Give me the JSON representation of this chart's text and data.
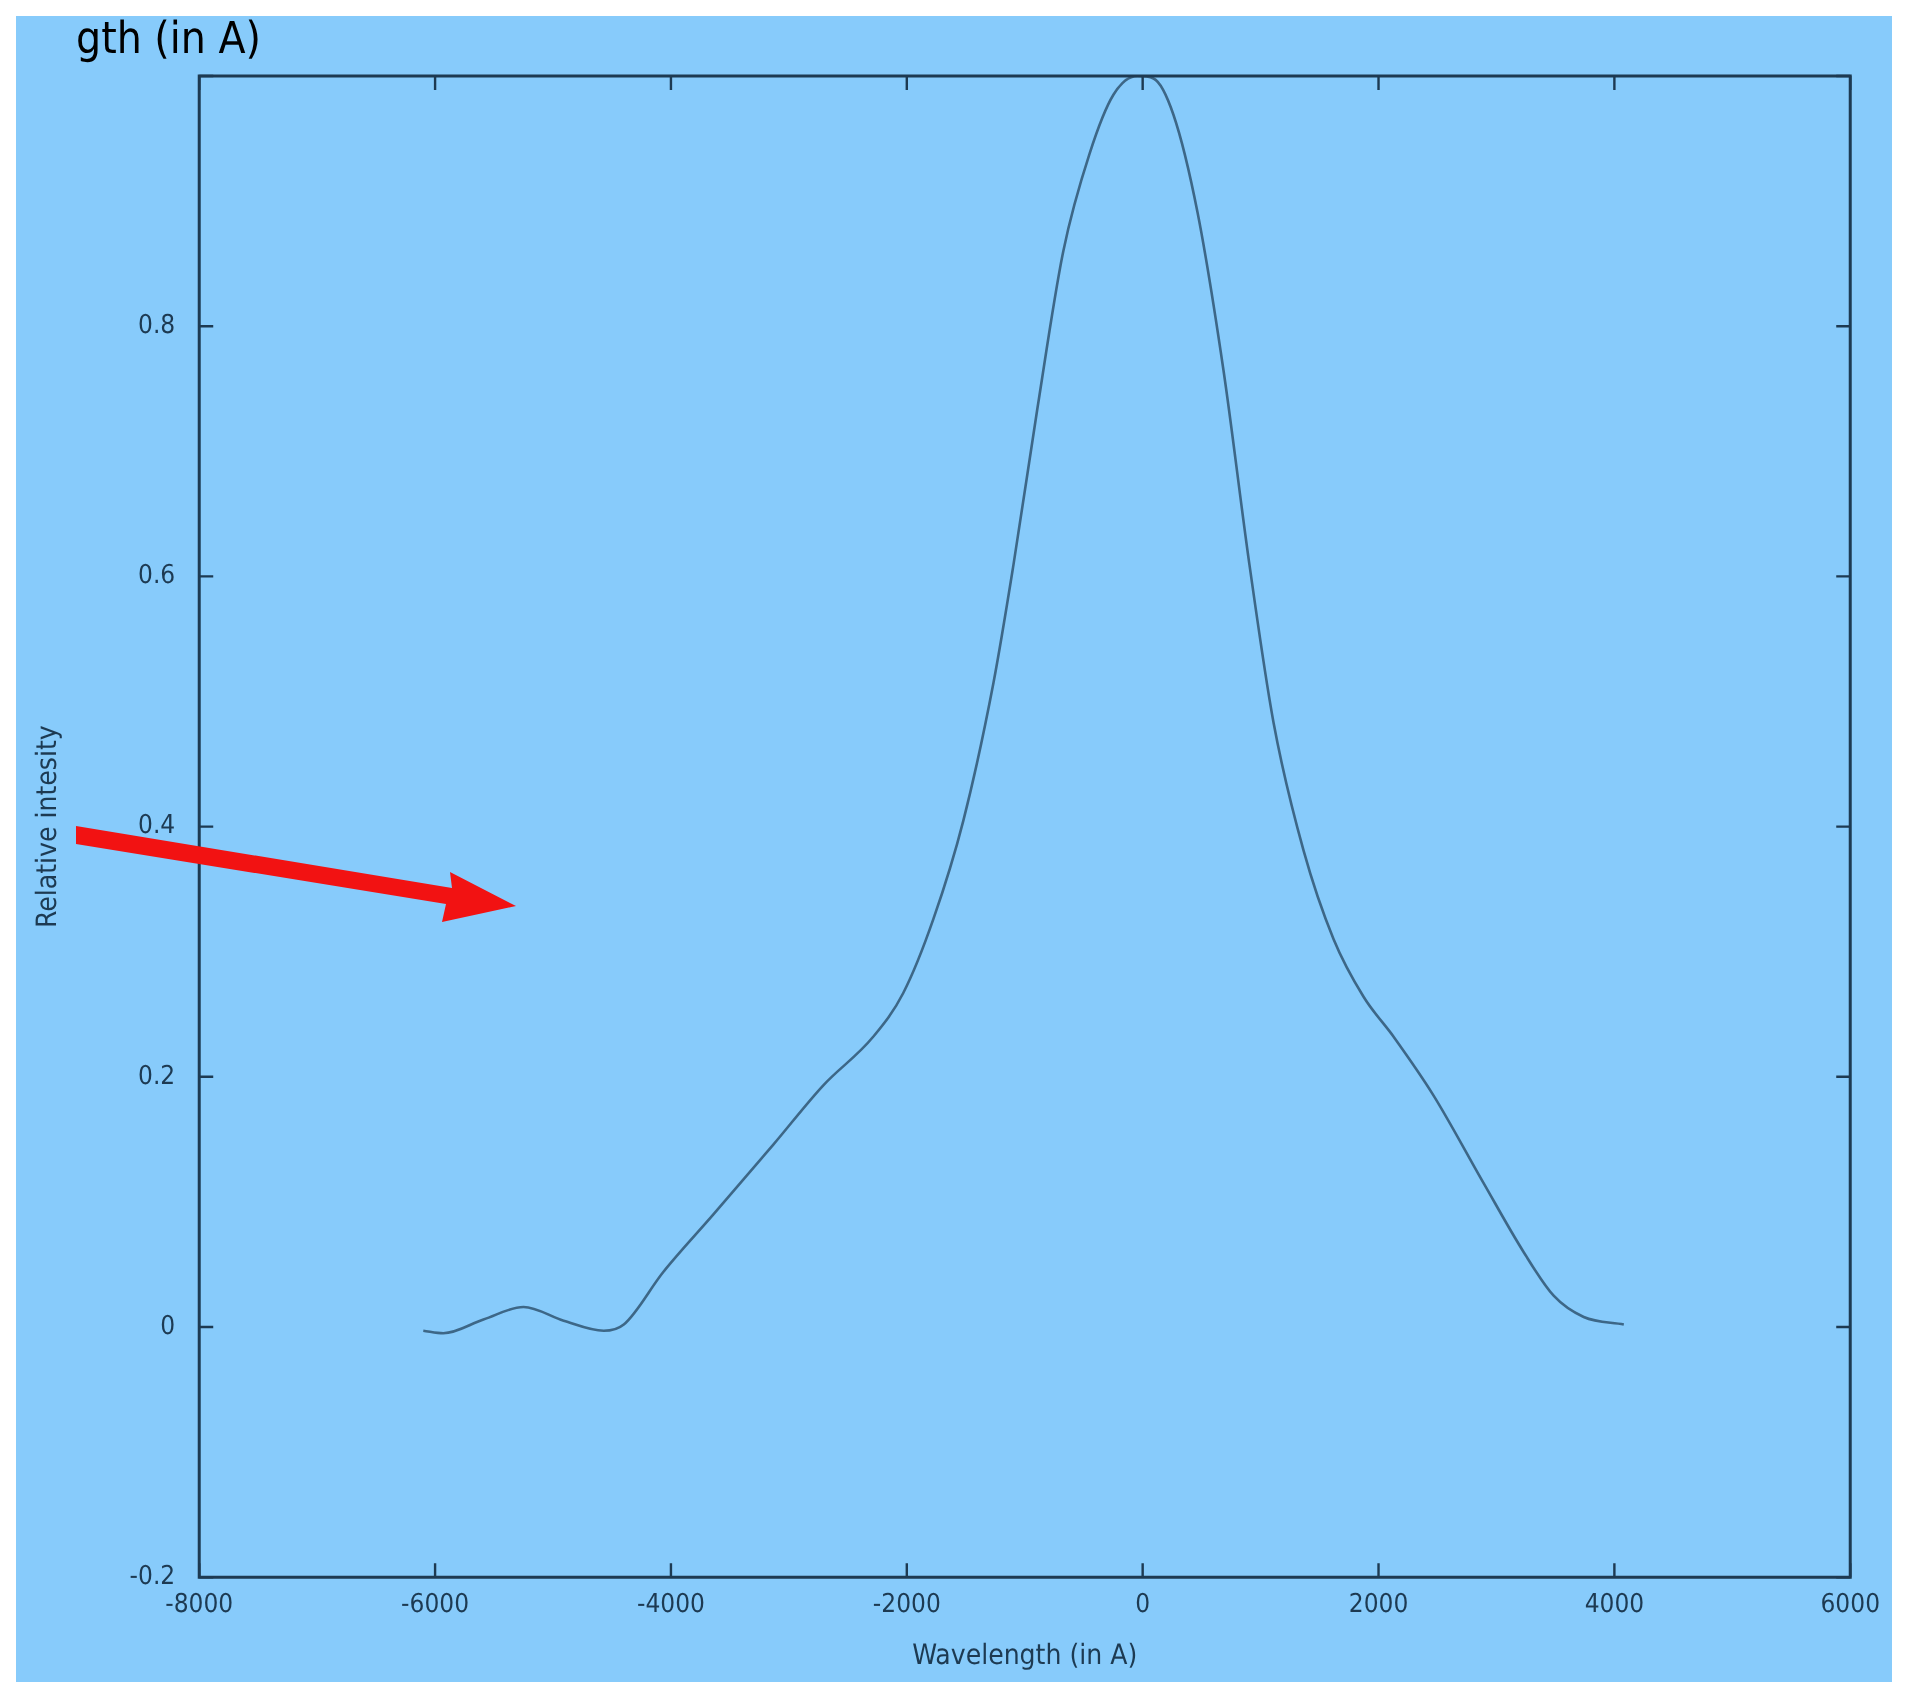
{
  "chart_data": {
    "type": "line",
    "xlabel": "Wavelength (in A)",
    "ylabel": "Relative intesity",
    "annotations": [
      "gth (in A)"
    ],
    "series": [
      {
        "color": "#3d6787",
        "x": [
          -6100,
          -5930,
          -5590,
          -5250,
          -4910,
          -4570,
          -4400,
          -4065,
          -3640,
          -3130,
          -2710,
          -2285,
          -2030,
          -1775,
          -1520,
          -1265,
          -1096,
          -893,
          -673,
          -450,
          -248,
          -44,
          92,
          261,
          465,
          685,
          906,
          1110,
          1364,
          1619,
          1873,
          2128,
          2467,
          2891,
          3230,
          3485,
          3740,
          4080
        ],
        "values": [
          -0.003,
          -0.005,
          0.006,
          0.016,
          0.005,
          -0.003,
          0.002,
          0.044,
          0.09,
          0.146,
          0.193,
          0.232,
          0.267,
          0.326,
          0.405,
          0.515,
          0.609,
          0.734,
          0.86,
          0.938,
          0.985,
          1.0,
          0.998,
          0.969,
          0.891,
          0.765,
          0.609,
          0.483,
          0.381,
          0.31,
          0.264,
          0.232,
          0.185,
          0.115,
          0.06,
          0.025,
          0.008,
          0.002
        ]
      }
    ],
    "xlim": [
      -8000,
      6000
    ],
    "xticks": [
      -8000,
      -6000,
      -4000,
      -2000,
      0,
      2000,
      4000,
      6000
    ],
    "ylim": [
      -0.2,
      1
    ],
    "yticks": [
      -0.2,
      0,
      0.2,
      0.4,
      0.6,
      0.8,
      {
        "value": 1,
        "label": null
      }
    ],
    "grid": false,
    "legend": false,
    "marker": "none",
    "line_style": "solid"
  }
}
